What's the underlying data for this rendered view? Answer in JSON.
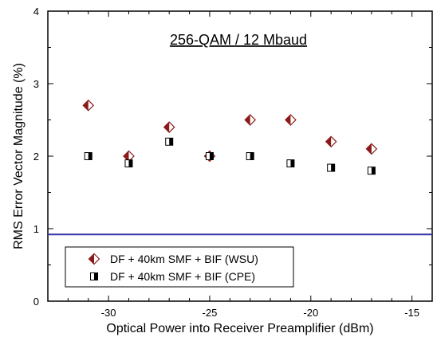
{
  "chart_data": {
    "type": "scatter",
    "title": "256-QAM / 12 Mbaud",
    "xlabel": "Optical Power into Receiver Preamplifier (dBm)",
    "ylabel": "RMS Error Vector Magnitude (%)",
    "xlim": [
      -33,
      -14
    ],
    "ylim": [
      0,
      4
    ],
    "x_ticks": [
      -30,
      -25,
      -20,
      -15
    ],
    "y_ticks": [
      0,
      1,
      2,
      3,
      4
    ],
    "x_tick_labels": [
      "-30",
      "-25",
      "-20",
      "-15"
    ],
    "y_tick_labels": [
      "0",
      "1",
      "2",
      "3",
      "4"
    ],
    "grid": false,
    "legend_position": "bottom-left",
    "reference_line": {
      "y": 0.92,
      "color": "#3333aa"
    },
    "series": [
      {
        "name": "DF + 40km SMF + BIF (WSU)",
        "marker": "half-filled-diamond",
        "color": "#8b1a1a",
        "x": [
          -31,
          -29,
          -27,
          -25,
          -23,
          -21,
          -19,
          -17
        ],
        "y": [
          2.7,
          2.0,
          2.4,
          2.0,
          2.5,
          2.5,
          2.2,
          2.1
        ]
      },
      {
        "name": "DF + 40km SMF + BIF (CPE)",
        "marker": "half-filled-square",
        "color": "#000000",
        "x": [
          -31,
          -29,
          -27,
          -25,
          -23,
          -21,
          -19,
          -17
        ],
        "y": [
          2.0,
          1.9,
          2.2,
          2.0,
          2.0,
          1.9,
          1.84,
          1.8
        ]
      }
    ]
  }
}
